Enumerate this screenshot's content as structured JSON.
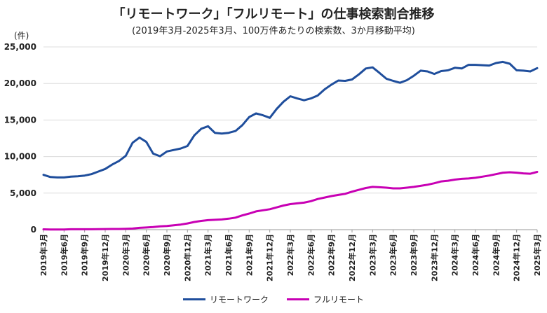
{
  "chart_data": {
    "type": "line",
    "title": "「リモートワーク」「フルリモート」の仕事検索割合推移",
    "subtitle": "(2019年3月-2025年3月、100万件あたりの検索数、3か月移動平均)",
    "ylabel": "(件)",
    "ylim": [
      0,
      25000
    ],
    "yticks": [
      0,
      5000,
      10000,
      15000,
      20000,
      25000
    ],
    "ytick_labels": [
      "0",
      "5,000",
      "10,000",
      "15,000",
      "20,000",
      "25,000"
    ],
    "xtick_labels": [
      "2019年3月",
      "2019年6月",
      "2019年9月",
      "2019年12月",
      "2020年3月",
      "2020年6月",
      "2020年9月",
      "2020年12月",
      "2021年3月",
      "2021年6月",
      "2021年9月",
      "2021年12月",
      "2022年3月",
      "2022年6月",
      "2022年9月",
      "2022年12月",
      "2023年3月",
      "2023年6月",
      "2023年9月",
      "2023年12月",
      "2024年3月",
      "2024年6月",
      "2024年9月",
      "2024年12月",
      "2025年3月"
    ],
    "grid": true,
    "legend_position": "bottom",
    "series": [
      {
        "name": "リモートワーク",
        "color": "#1f4e9c",
        "values": [
          7500,
          7200,
          7150,
          7150,
          7250,
          7300,
          7400,
          7600,
          7950,
          8300,
          8900,
          9400,
          10100,
          11900,
          12600,
          12000,
          10400,
          10050,
          10700,
          10900,
          11100,
          11450,
          12900,
          13800,
          14150,
          13250,
          13150,
          13250,
          13500,
          14300,
          15400,
          15900,
          15650,
          15300,
          16500,
          17500,
          18250,
          17950,
          17700,
          17950,
          18350,
          19200,
          19850,
          20400,
          20350,
          20550,
          21250,
          22050,
          22200,
          21450,
          20650,
          20350,
          20100,
          20450,
          21050,
          21750,
          21650,
          21300,
          21700,
          21800,
          22150,
          22050,
          22550,
          22550,
          22500,
          22450,
          22800,
          22950,
          22700,
          21800,
          21750,
          21650,
          22100
        ]
      },
      {
        "name": "フルリモート",
        "color": "#c800b4",
        "values": [
          50,
          30,
          20,
          30,
          60,
          60,
          60,
          60,
          80,
          90,
          100,
          100,
          120,
          150,
          250,
          300,
          350,
          450,
          500,
          600,
          700,
          850,
          1050,
          1200,
          1300,
          1350,
          1400,
          1500,
          1650,
          1950,
          2200,
          2500,
          2650,
          2800,
          3050,
          3300,
          3500,
          3600,
          3700,
          3900,
          4200,
          4400,
          4600,
          4750,
          4900,
          5200,
          5450,
          5700,
          5850,
          5800,
          5750,
          5650,
          5650,
          5750,
          5850,
          6000,
          6150,
          6350,
          6600,
          6700,
          6850,
          6950,
          7000,
          7100,
          7250,
          7400,
          7600,
          7800,
          7850,
          7800,
          7700,
          7650,
          7900
        ]
      }
    ]
  }
}
